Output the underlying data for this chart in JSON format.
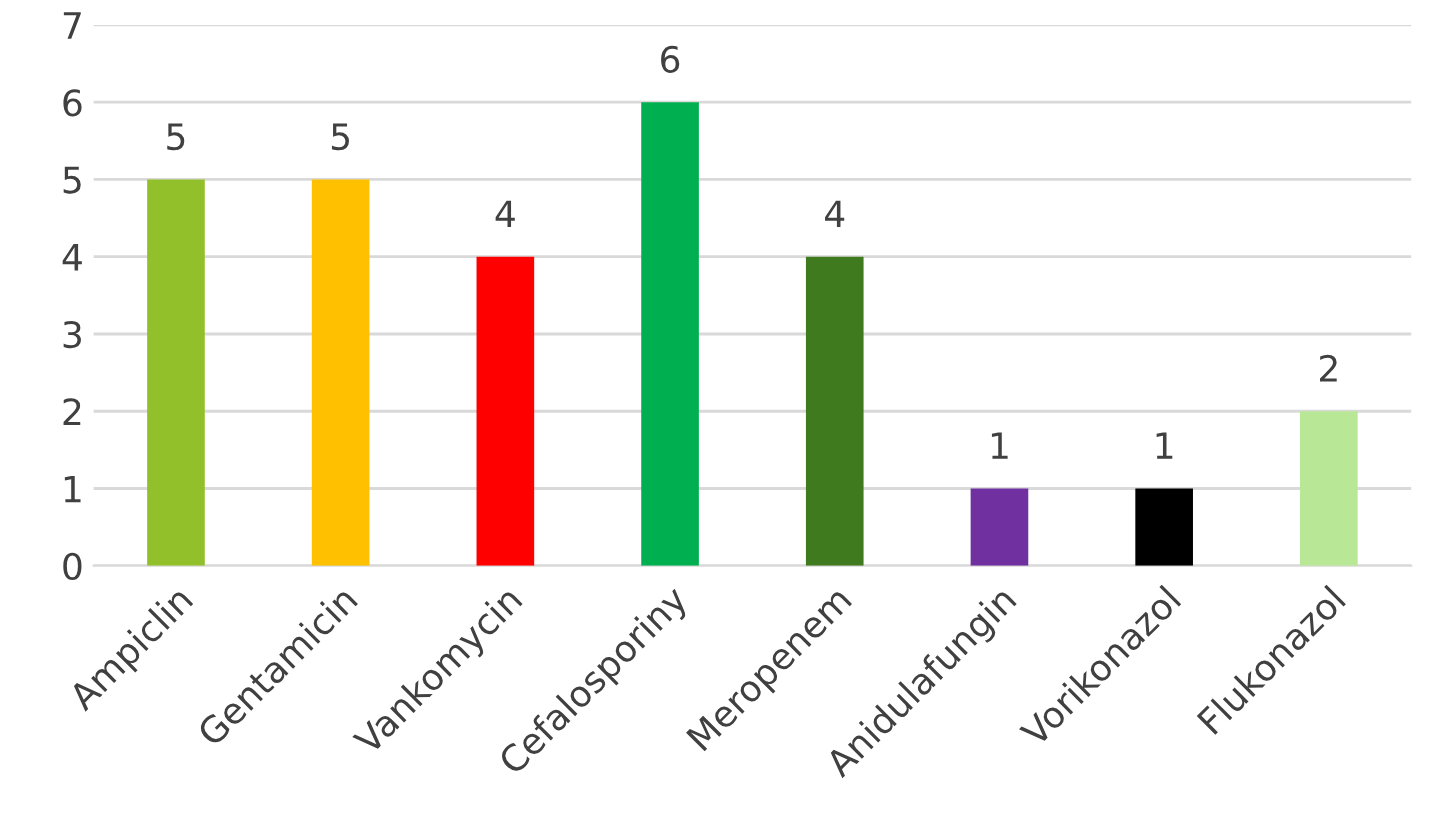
{
  "chart_data": {
    "type": "bar",
    "categories": [
      "Ampiclin",
      "Gentamicin",
      "Vankomycin",
      "Cefalosporiny",
      "Meropenem",
      "Anidulafungin",
      "Vorikonazol",
      "Flukonazol"
    ],
    "values": [
      5,
      5,
      4,
      6,
      4,
      1,
      1,
      2
    ],
    "colors": [
      "#92c02a",
      "#ffc000",
      "#ff0000",
      "#00b050",
      "#3f7a1e",
      "#7030a0",
      "#000000",
      "#b8e896"
    ],
    "ylim": [
      0,
      7
    ],
    "yticks": [
      0,
      1,
      2,
      3,
      4,
      5,
      6,
      7
    ],
    "grid": "y",
    "data_labels": true
  }
}
